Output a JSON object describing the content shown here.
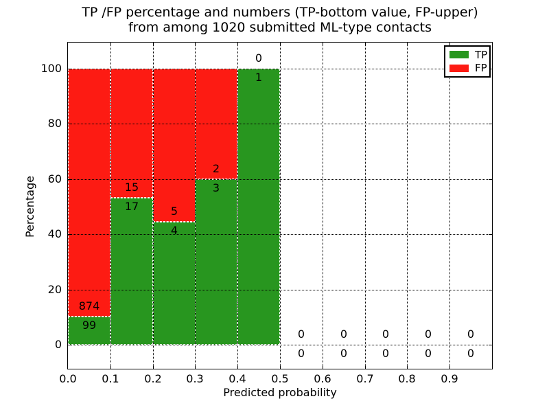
{
  "title": {
    "line1": "TP /FP percentage and numbers (TP-bottom value, FP-upper)",
    "line2": "from among 1020 submitted ML-type contacts"
  },
  "chart_data": {
    "type": "bar",
    "stacked": true,
    "title": "TP /FP percentage and numbers (TP-bottom value, FP-upper) from among 1020 submitted ML-type contacts",
    "xlabel": "Predicted probability",
    "ylabel": "Percentage",
    "x_tick_labels": [
      "0.0",
      "0.1",
      "0.2",
      "0.3",
      "0.4",
      "0.5",
      "0.6",
      "0.7",
      "0.8",
      "0.9"
    ],
    "y_tick_values": [
      0,
      20,
      40,
      60,
      80,
      100
    ],
    "xlim": [
      0.0,
      1.0
    ],
    "ylim": [
      -9,
      110
    ],
    "grid": "dotted",
    "bin_width": 0.1,
    "total_contacts": 1020,
    "bins": [
      {
        "range": "0.0-0.1",
        "tp": 99,
        "fp": 874
      },
      {
        "range": "0.1-0.2",
        "tp": 17,
        "fp": 15
      },
      {
        "range": "0.2-0.3",
        "tp": 4,
        "fp": 5
      },
      {
        "range": "0.3-0.4",
        "tp": 3,
        "fp": 2
      },
      {
        "range": "0.4-0.5",
        "tp": 1,
        "fp": 0
      },
      {
        "range": "0.5-0.6",
        "tp": 0,
        "fp": 0
      },
      {
        "range": "0.6-0.7",
        "tp": 0,
        "fp": 0
      },
      {
        "range": "0.7-0.8",
        "tp": 0,
        "fp": 0
      },
      {
        "range": "0.8-0.9",
        "tp": 0,
        "fp": 0
      },
      {
        "range": "0.9-1.0",
        "tp": 0,
        "fp": 0
      }
    ],
    "legend": {
      "position": "upper right",
      "items": [
        {
          "label": "TP",
          "color": "#28961f"
        },
        {
          "label": "FP",
          "color": "#fd1b13"
        }
      ]
    }
  },
  "colors": {
    "tp": "#28961f",
    "fp": "#fd1b13",
    "grid": "#000000",
    "bar_edge": "#ffffff",
    "background": "#ffffff"
  }
}
